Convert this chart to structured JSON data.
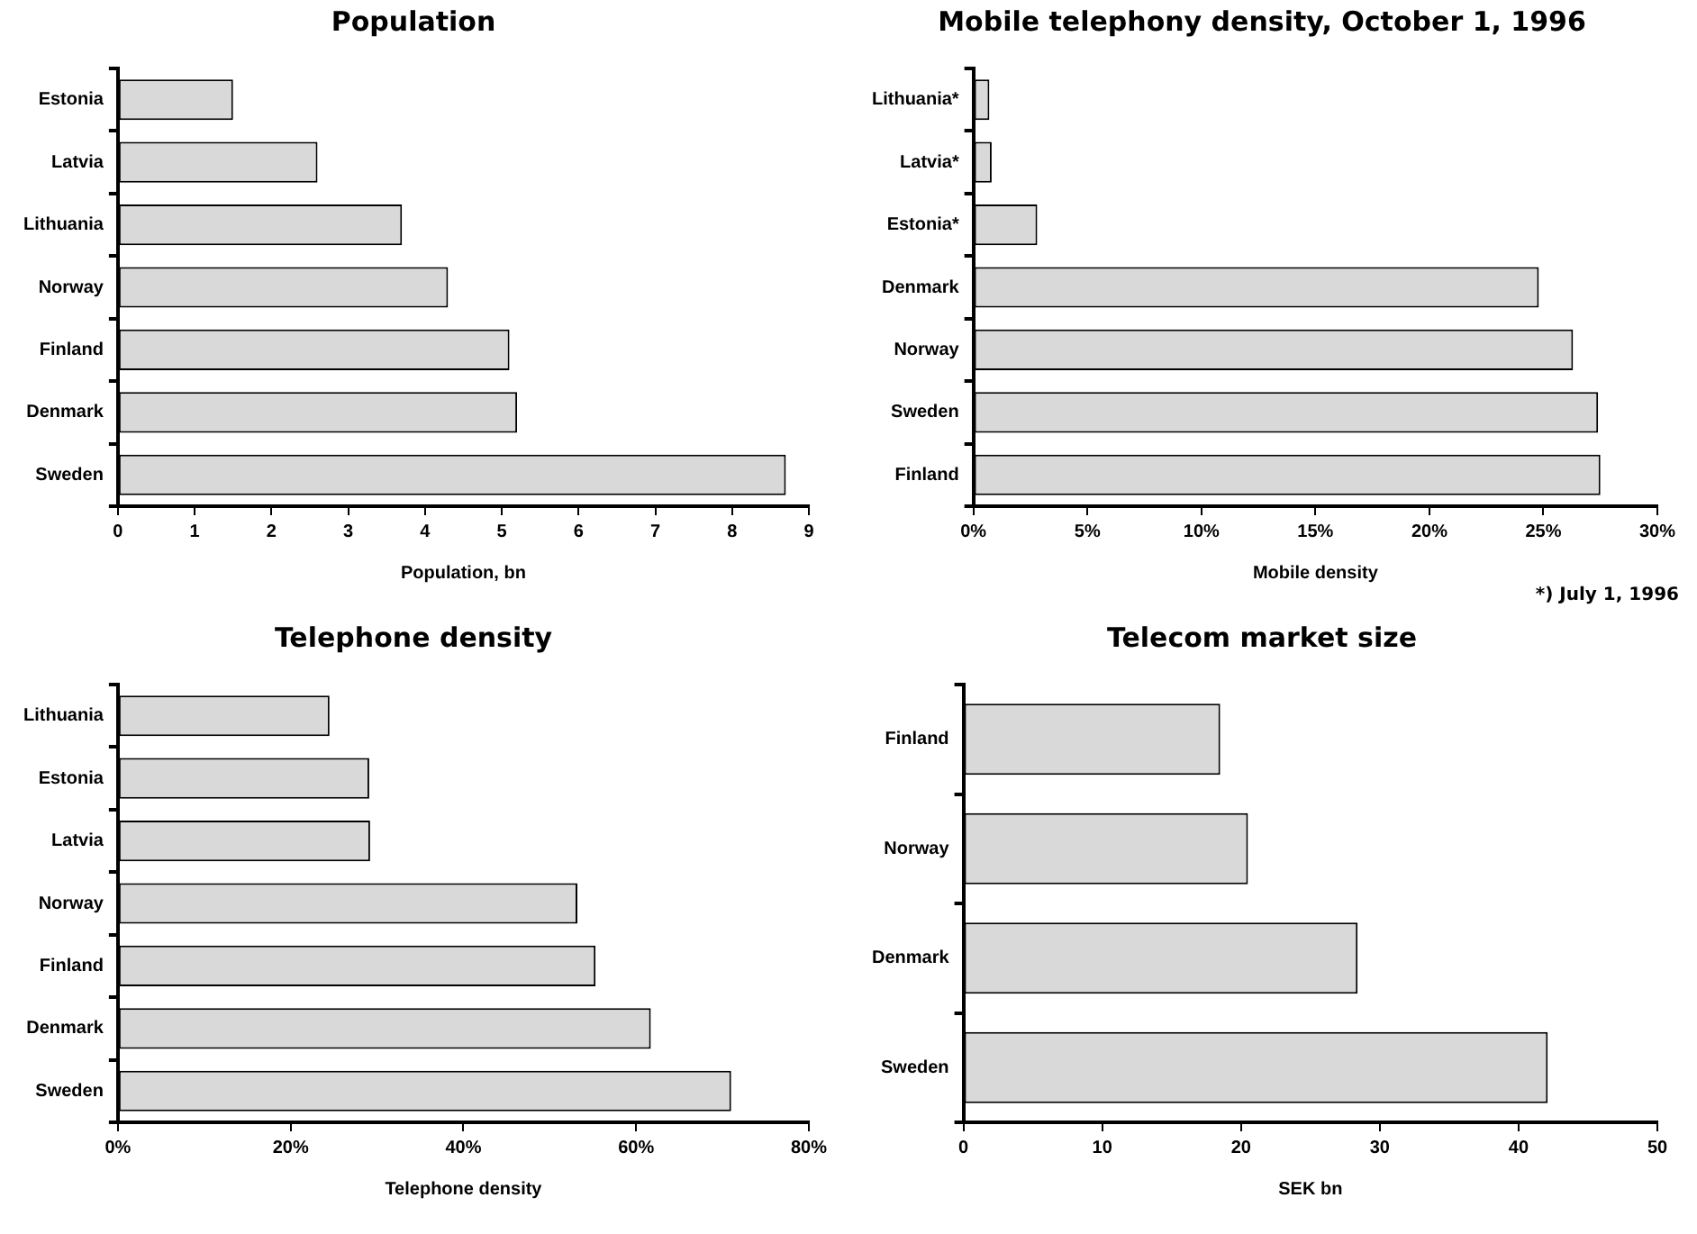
{
  "chart_data": [
    {
      "type": "bar",
      "orientation": "horizontal",
      "title": "Population",
      "xlabel": "Population, bn",
      "categories": [
        "Estonia",
        "Latvia",
        "Lithuania",
        "Norway",
        "Finland",
        "Denmark",
        "Sweden"
      ],
      "values": [
        1.5,
        2.6,
        3.7,
        4.3,
        5.1,
        5.2,
        8.7
      ],
      "color": "#d9d9d9",
      "xlim": [
        0,
        9
      ],
      "xticks": [
        0,
        1,
        2,
        3,
        4,
        5,
        6,
        7,
        8,
        9
      ]
    },
    {
      "type": "bar",
      "orientation": "horizontal",
      "title": "Mobile telephony density, October 1, 1996",
      "xlabel": "Mobile density",
      "annotations": [
        "*) July 1, 1996"
      ],
      "categories": [
        "Lithuania*",
        "Latvia*",
        "Estonia*",
        "Denmark",
        "Norway",
        "Sweden",
        "Finland"
      ],
      "values": [
        0.7,
        0.8,
        2.8,
        24.8,
        26.3,
        27.4,
        27.5
      ],
      "color": "#d9d9d9",
      "xlim": [
        0,
        30
      ],
      "xticks": [
        {
          "value": 0,
          "label": "0%"
        },
        {
          "value": 5,
          "label": "5%"
        },
        {
          "value": 10,
          "label": "10%"
        },
        {
          "value": 15,
          "label": "15%"
        },
        {
          "value": 20,
          "label": "20%"
        },
        {
          "value": 25,
          "label": "25%"
        },
        {
          "value": 30,
          "label": "30%"
        }
      ]
    },
    {
      "type": "bar",
      "orientation": "horizontal",
      "title": "Telephone density",
      "xlabel": "Telephone density",
      "categories": [
        "Lithuania",
        "Estonia",
        "Latvia",
        "Norway",
        "Finland",
        "Denmark",
        "Sweden"
      ],
      "values": [
        24.5,
        29.1,
        29.2,
        53.2,
        55.3,
        61.7,
        71.0
      ],
      "color": "#d9d9d9",
      "xlim": [
        0,
        80
      ],
      "xticks": [
        {
          "value": 0,
          "label": "0%"
        },
        {
          "value": 20,
          "label": "20%"
        },
        {
          "value": 40,
          "label": "40%"
        },
        {
          "value": 60,
          "label": "60%"
        },
        {
          "value": 80,
          "label": "80%"
        }
      ]
    },
    {
      "type": "bar",
      "orientation": "horizontal",
      "title": "Telecom market size",
      "xlabel": "SEK bn",
      "categories": [
        "Finland",
        "Norway",
        "Denmark",
        "Sweden"
      ],
      "values": [
        18.5,
        20.5,
        28.4,
        42.1
      ],
      "color": "#d9d9d9",
      "xlim": [
        0,
        50
      ],
      "xticks": [
        0,
        10,
        20,
        30,
        40,
        50
      ]
    }
  ]
}
